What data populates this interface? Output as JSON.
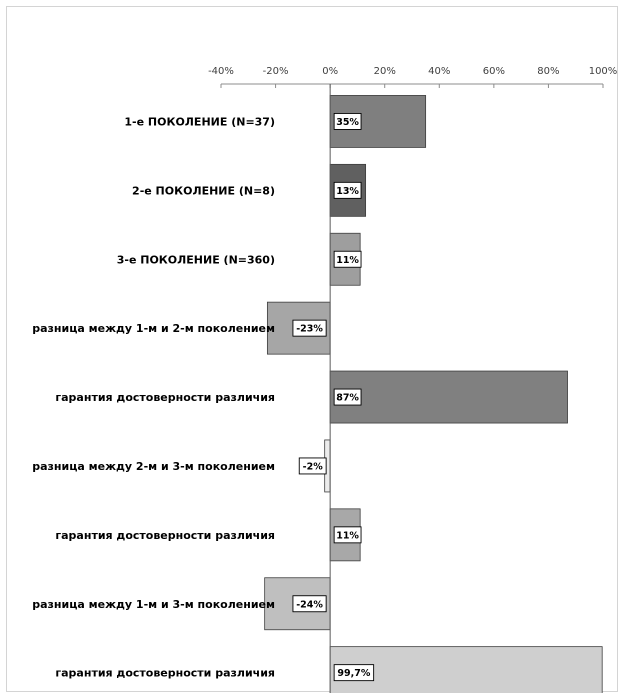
{
  "chart_data": {
    "type": "bar",
    "orientation": "horizontal",
    "title": "",
    "xlabel": "",
    "ylabel": "",
    "xlim": [
      -40,
      100
    ],
    "x_ticks": [
      -40,
      -20,
      0,
      20,
      40,
      60,
      80,
      100
    ],
    "x_tick_labels": [
      "-40%",
      "-20%",
      "0%",
      "20%",
      "40%",
      "60%",
      "80%",
      "100%"
    ],
    "grid": false,
    "legend": "none",
    "categories": [
      "1-е ПОКОЛЕНИЕ (N=37)",
      "2-е ПОКОЛЕНИЕ (N=8)",
      "3-е ПОКОЛЕНИЕ (N=360)",
      "разница между 1-м и 2-м поколением",
      "гарантия достоверности различия",
      "разница между 2-м и 3-м поколением",
      "гарантия достоверности различия",
      "разница между 1-м и 3-м поколением",
      "гарантия достоверности различия"
    ],
    "values": [
      35,
      13,
      11,
      -23,
      87,
      -2,
      11,
      -24,
      99.7
    ],
    "data_labels": [
      "35%",
      "13%",
      "11%",
      "-23%",
      "87%",
      "-2%",
      "11%",
      "-24%",
      "99,7%"
    ],
    "bar_colors": [
      "#7f7f7f",
      "#606060",
      "#9e9e9e",
      "#a6a6a6",
      "#808080",
      "#ececec",
      "#a8a8a8",
      "#bfbfbf",
      "#cfcfcf"
    ]
  }
}
